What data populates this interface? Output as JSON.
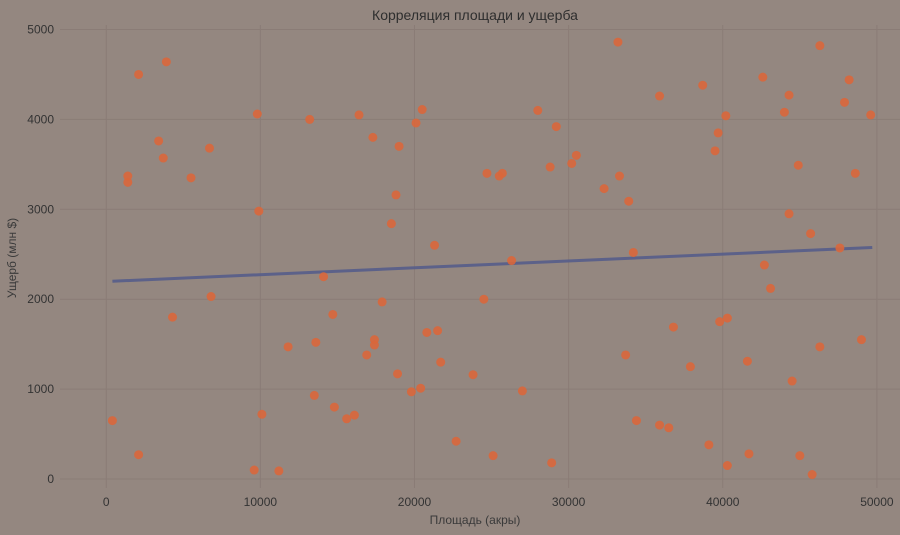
{
  "chart_data": {
    "type": "scatter",
    "title": "Корреляция площади и ущерба",
    "xlabel": "Площадь (акры)",
    "ylabel": "Ущерб (млн $)",
    "xlim": [
      -3000,
      51500
    ],
    "ylim": [
      -100,
      5050
    ],
    "xticks": [
      0,
      10000,
      20000,
      30000,
      40000,
      50000
    ],
    "yticks": [
      0,
      1000,
      2000,
      3000,
      4000,
      5000
    ],
    "grid": true,
    "colors": {
      "points": "#d9673b",
      "trendline": "#555d8a",
      "grid": "#8a7c76",
      "background": "#948780"
    },
    "trendline": {
      "x": [
        400,
        49700
      ],
      "y": [
        2200,
        2575
      ]
    },
    "points": [
      [
        400,
        650
      ],
      [
        1400,
        3300
      ],
      [
        1400,
        3370
      ],
      [
        2100,
        4500
      ],
      [
        2100,
        270
      ],
      [
        3400,
        3760
      ],
      [
        3700,
        3570
      ],
      [
        3900,
        4640
      ],
      [
        4300,
        1800
      ],
      [
        5500,
        3350
      ],
      [
        6700,
        3680
      ],
      [
        6800,
        2030
      ],
      [
        9600,
        100
      ],
      [
        9800,
        4060
      ],
      [
        9900,
        2980
      ],
      [
        10100,
        720
      ],
      [
        11200,
        90
      ],
      [
        11800,
        1470
      ],
      [
        13200,
        4000
      ],
      [
        13500,
        930
      ],
      [
        13600,
        1520
      ],
      [
        14100,
        2250
      ],
      [
        14700,
        1830
      ],
      [
        14800,
        800
      ],
      [
        15600,
        670
      ],
      [
        16100,
        710
      ],
      [
        16400,
        4050
      ],
      [
        16900,
        1380
      ],
      [
        17300,
        3800
      ],
      [
        17400,
        1550
      ],
      [
        17400,
        1490
      ],
      [
        17900,
        1970
      ],
      [
        18500,
        2840
      ],
      [
        18800,
        3160
      ],
      [
        18900,
        1170
      ],
      [
        19000,
        3700
      ],
      [
        19800,
        970
      ],
      [
        20100,
        3960
      ],
      [
        20400,
        1010
      ],
      [
        20500,
        4110
      ],
      [
        20800,
        1630
      ],
      [
        21300,
        2600
      ],
      [
        21500,
        1650
      ],
      [
        21700,
        1300
      ],
      [
        22700,
        420
      ],
      [
        23800,
        1160
      ],
      [
        24500,
        2000
      ],
      [
        24700,
        3400
      ],
      [
        25100,
        260
      ],
      [
        25500,
        3370
      ],
      [
        25700,
        3400
      ],
      [
        26300,
        2430
      ],
      [
        27000,
        980
      ],
      [
        28000,
        4100
      ],
      [
        28800,
        3470
      ],
      [
        28900,
        180
      ],
      [
        29200,
        3920
      ],
      [
        30200,
        3510
      ],
      [
        30500,
        3600
      ],
      [
        32300,
        3230
      ],
      [
        33200,
        4860
      ],
      [
        33300,
        3370
      ],
      [
        33700,
        1380
      ],
      [
        33900,
        3090
      ],
      [
        34200,
        2520
      ],
      [
        34400,
        650
      ],
      [
        35900,
        600
      ],
      [
        35900,
        4260
      ],
      [
        36500,
        570
      ],
      [
        36800,
        1690
      ],
      [
        37900,
        1250
      ],
      [
        38700,
        4380
      ],
      [
        39100,
        380
      ],
      [
        39500,
        3650
      ],
      [
        39700,
        3850
      ],
      [
        39800,
        1750
      ],
      [
        40200,
        4040
      ],
      [
        40300,
        1790
      ],
      [
        40300,
        150
      ],
      [
        41600,
        1310
      ],
      [
        41700,
        280
      ],
      [
        42600,
        4470
      ],
      [
        42700,
        2380
      ],
      [
        43100,
        2120
      ],
      [
        44000,
        4080
      ],
      [
        44300,
        4270
      ],
      [
        44300,
        2950
      ],
      [
        44500,
        1090
      ],
      [
        44900,
        3490
      ],
      [
        45000,
        260
      ],
      [
        45700,
        2730
      ],
      [
        45800,
        50
      ],
      [
        46300,
        1470
      ],
      [
        46300,
        4820
      ],
      [
        47600,
        2570
      ],
      [
        47900,
        4190
      ],
      [
        48200,
        4440
      ],
      [
        48600,
        3400
      ],
      [
        49000,
        1550
      ],
      [
        49600,
        4050
      ]
    ]
  }
}
